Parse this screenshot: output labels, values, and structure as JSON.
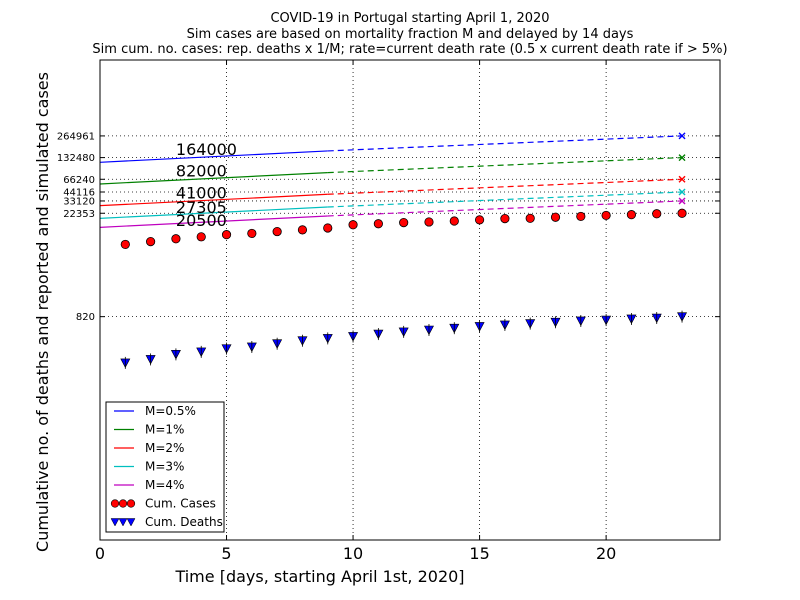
{
  "chart_data": {
    "type": "line",
    "title": [
      "COVID-19 in Portugal starting April 1, 2020",
      "Sim cases are based on mortality fraction M and delayed by 14 days",
      "Sim cum. no. cases: rep. deaths x 1/M; rate=current death rate (0.5 x current death rate if > 5%)"
    ],
    "xlabel": "Time [days, starting April 1st, 2020]",
    "ylabel": "Cumulative no. of deaths and reported and simulated cases",
    "xlim": [
      0,
      24.5
    ],
    "ylim": [
      0.65,
      3000000
    ],
    "yscale": "log",
    "xticks": [
      0,
      5,
      10,
      15,
      20
    ],
    "yticks": [
      820,
      22353,
      33120,
      44116,
      66240,
      132480,
      264961
    ],
    "ytick_labels": [
      "820",
      "22353",
      "33120",
      "44116",
      "66240",
      "132480",
      "264961"
    ],
    "grid": true,
    "legend_position": "lower-left",
    "annotations": [
      {
        "text": "164000",
        "x": 3,
        "y": 164000
      },
      {
        "text": "82000",
        "x": 3,
        "y": 82000
      },
      {
        "text": "41000",
        "x": 3,
        "y": 41000
      },
      {
        "text": "27305",
        "x": 3,
        "y": 27305
      },
      {
        "text": "20500",
        "x": 3,
        "y": 20500
      }
    ],
    "series": [
      {
        "name": "M=0.5%",
        "color": "#0000ff",
        "solid": [
          [
            0,
            114000
          ],
          [
            9,
            164000
          ]
        ],
        "dashed": [
          [
            9,
            164000
          ],
          [
            23,
            264961
          ]
        ],
        "end_marker": "x"
      },
      {
        "name": "M=1%",
        "color": "#008000",
        "solid": [
          [
            0,
            57000
          ],
          [
            9,
            82000
          ]
        ],
        "dashed": [
          [
            9,
            82000
          ],
          [
            23,
            132480
          ]
        ],
        "end_marker": "x"
      },
      {
        "name": "M=2%",
        "color": "#ff0000",
        "solid": [
          [
            0,
            28500
          ],
          [
            9,
            41000
          ]
        ],
        "dashed": [
          [
            9,
            41000
          ],
          [
            23,
            66240
          ]
        ],
        "end_marker": "x"
      },
      {
        "name": "M=3%",
        "color": "#00bfbf",
        "solid": [
          [
            0,
            19000
          ],
          [
            9,
            27305
          ]
        ],
        "dashed": [
          [
            9,
            27305
          ],
          [
            23,
            44116
          ]
        ],
        "end_marker": "x"
      },
      {
        "name": "M=4%",
        "color": "#bf00bf",
        "solid": [
          [
            0,
            14250
          ],
          [
            9,
            20500
          ]
        ],
        "dashed": [
          [
            9,
            20500
          ],
          [
            23,
            33120
          ]
        ],
        "end_marker": "x"
      },
      {
        "name": "Cum. Cases",
        "color": "#ff0000",
        "marker": "circle",
        "x": [
          1,
          2,
          3,
          4,
          5,
          6,
          7,
          8,
          9,
          10,
          11,
          12,
          13,
          14,
          15,
          16,
          17,
          18,
          19,
          20,
          21,
          22,
          23
        ],
        "values": [
          8251,
          9034,
          9886,
          10524,
          11278,
          11730,
          12442,
          13141,
          13956,
          15472,
          15987,
          16585,
          16934,
          17448,
          18091,
          18841,
          19022,
          19685,
          20206,
          20863,
          21379,
          21982,
          22353
        ]
      },
      {
        "name": "Cum. Deaths",
        "color": "#0000ff",
        "marker": "triangle-down",
        "x": [
          1,
          2,
          3,
          4,
          5,
          6,
          7,
          8,
          9,
          10,
          11,
          12,
          13,
          14,
          15,
          16,
          17,
          18,
          19,
          20,
          21,
          22,
          23
        ],
        "values": [
          187,
          209,
          246,
          266,
          295,
          311,
          345,
          380,
          409,
          435,
          470,
          504,
          535,
          567,
          599,
          629,
          657,
          687,
          714,
          735,
          762,
          785,
          820
        ]
      }
    ]
  }
}
